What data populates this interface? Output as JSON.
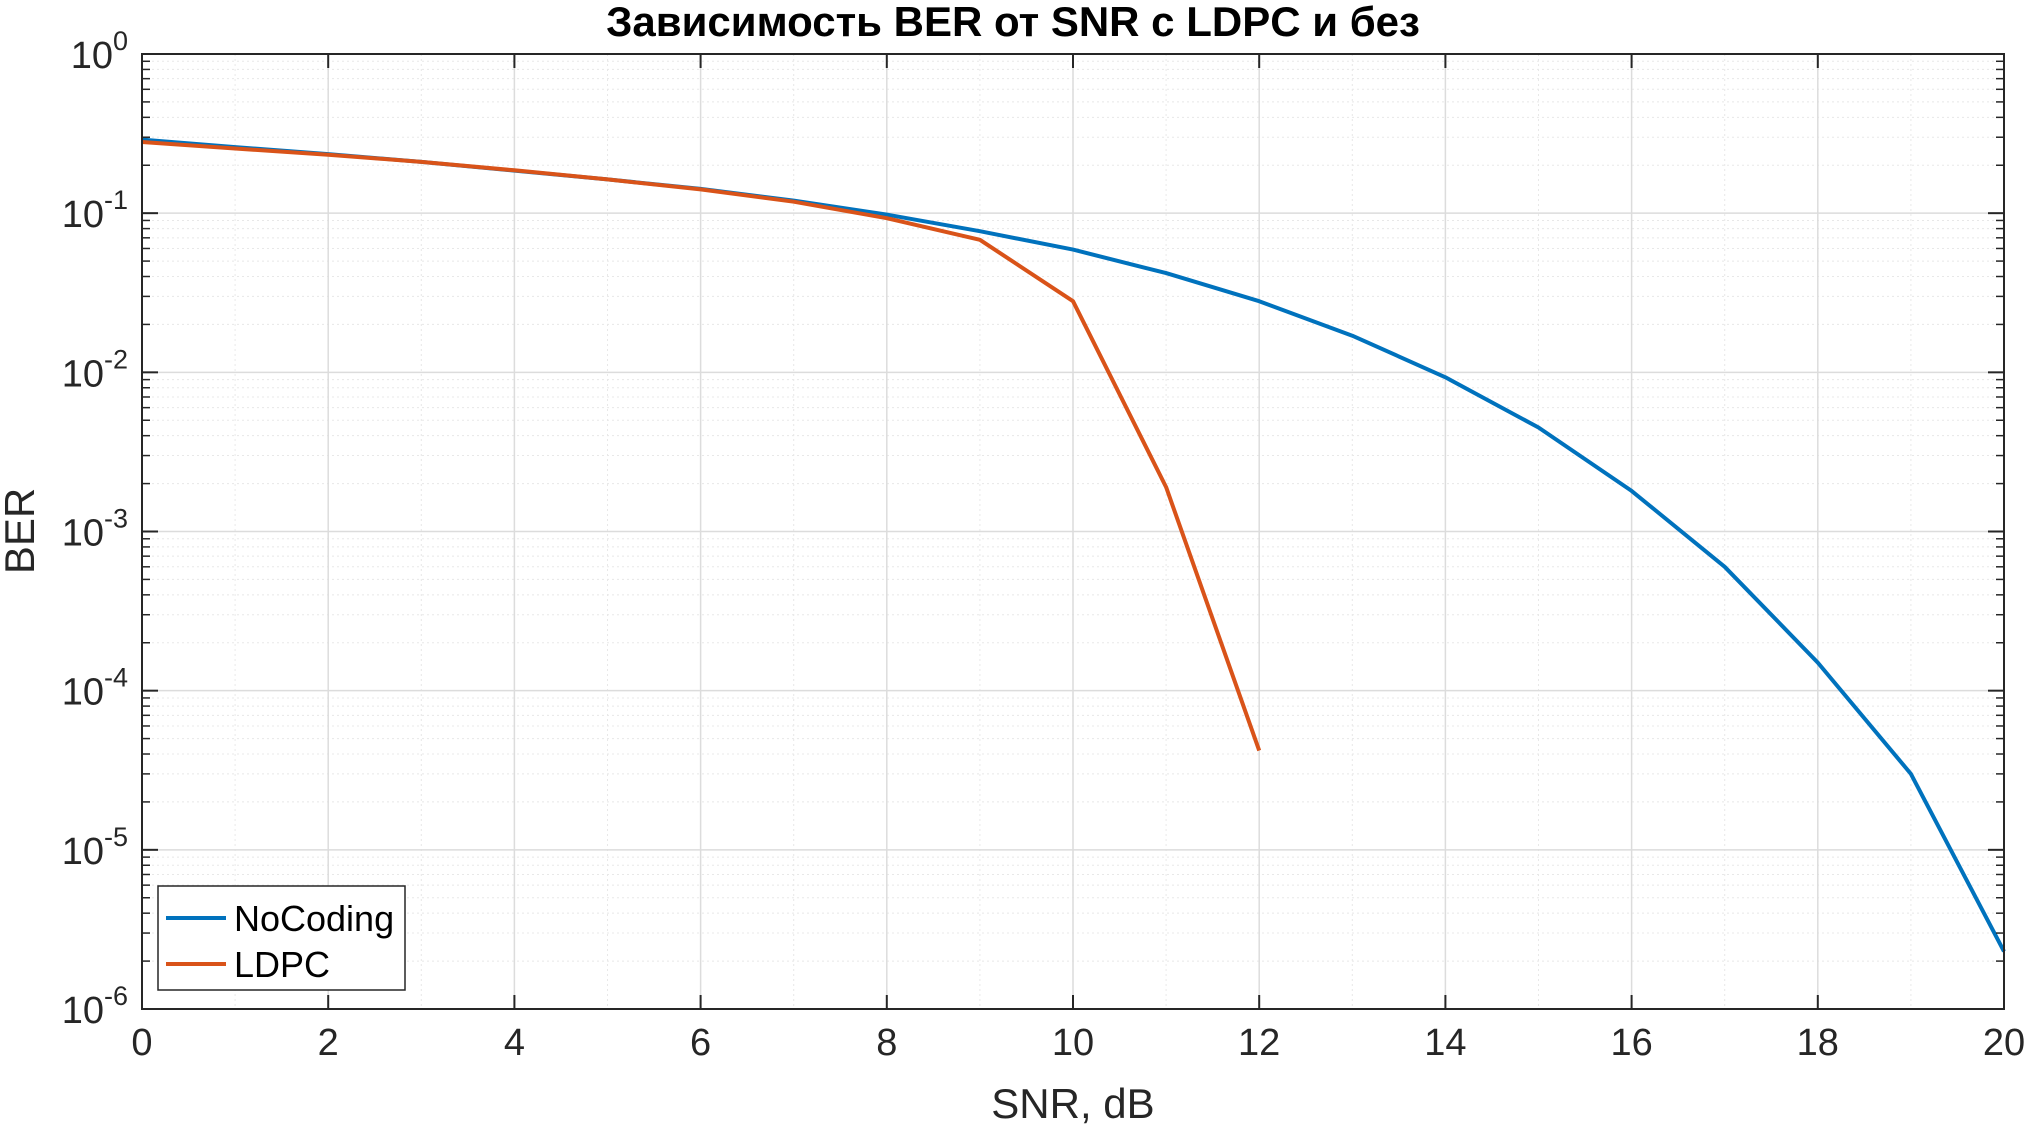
{
  "chart_data": {
    "type": "line",
    "title": "Зависимость BER от SNR с LDPC и без",
    "xlabel": "SNR, dB",
    "ylabel": "BER",
    "xlim": [
      0,
      20
    ],
    "ylim": [
      1e-06,
      1
    ],
    "yscale": "log",
    "grid": true,
    "minor_grid": true,
    "legend_position": "bottom-left",
    "x_ticks": [
      0,
      2,
      4,
      6,
      8,
      10,
      12,
      14,
      16,
      18,
      20
    ],
    "x_tick_labels": [
      "0",
      "2",
      "4",
      "6",
      "8",
      "10",
      "12",
      "14",
      "16",
      "18",
      "20"
    ],
    "y_ticks": [
      1,
      0.1,
      0.01,
      0.001,
      0.0001,
      1e-05,
      1e-06
    ],
    "y_tick_labels": [
      {
        "base": "10",
        "exp": "0"
      },
      {
        "base": "10",
        "exp": "-1"
      },
      {
        "base": "10",
        "exp": "-2"
      },
      {
        "base": "10",
        "exp": "-3"
      },
      {
        "base": "10",
        "exp": "-4"
      },
      {
        "base": "10",
        "exp": "-5"
      },
      {
        "base": "10",
        "exp": "-6"
      }
    ],
    "series": [
      {
        "name": "NoCoding",
        "color": "#0072BD",
        "x": [
          0,
          1,
          2,
          3,
          4,
          5,
          6,
          7,
          8,
          9,
          10,
          11,
          12,
          13,
          14,
          15,
          16,
          17,
          18,
          19,
          20
        ],
        "y": [
          0.29,
          0.26,
          0.235,
          0.21,
          0.185,
          0.163,
          0.142,
          0.12,
          0.098,
          0.077,
          0.059,
          0.042,
          0.028,
          0.017,
          0.0093,
          0.0045,
          0.0018,
          0.0006,
          0.00015,
          3e-05,
          2.3e-06
        ]
      },
      {
        "name": "LDPC",
        "color": "#D95319",
        "x": [
          0,
          1,
          2,
          3,
          4,
          5,
          6,
          7,
          8,
          9,
          10,
          11,
          12
        ],
        "y": [
          0.28,
          0.255,
          0.233,
          0.21,
          0.186,
          0.163,
          0.141,
          0.118,
          0.093,
          0.068,
          0.028,
          0.0019,
          4.2e-05
        ]
      }
    ]
  }
}
